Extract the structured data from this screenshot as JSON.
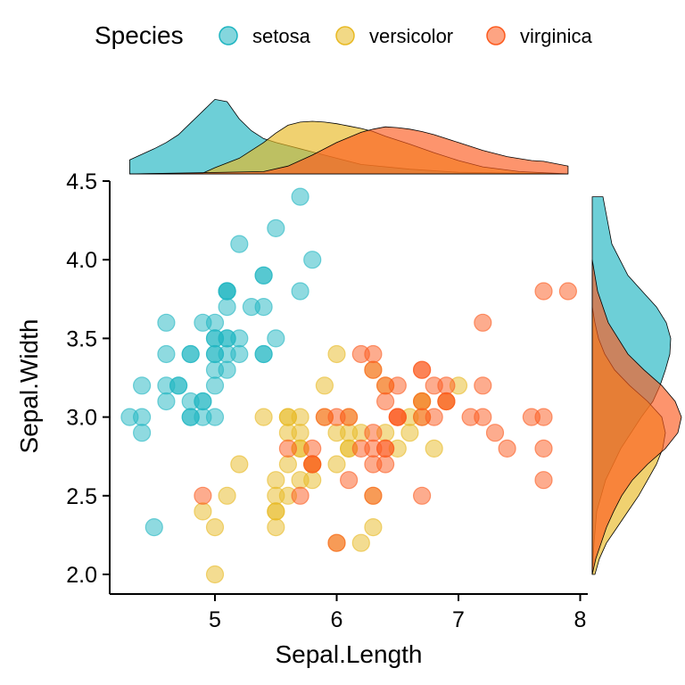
{
  "chart_data": {
    "type": "scatter",
    "title": "",
    "xlabel": "Sepal.Length",
    "ylabel": "Sepal.Width",
    "xlim": [
      4.2,
      8.05
    ],
    "ylim": [
      1.9,
      4.5
    ],
    "xticks": [
      5,
      6,
      7,
      8
    ],
    "yticks": [
      2.0,
      2.5,
      3.0,
      3.5,
      4.0,
      4.5
    ],
    "ytick_labels": [
      "2.0",
      "2.5",
      "3.0",
      "3.5",
      "4.0",
      "4.5"
    ],
    "xtick_labels": [
      "5",
      "6",
      "7",
      "8"
    ],
    "grid": false,
    "legend": {
      "title": "Species",
      "position": "top",
      "entries": [
        "setosa",
        "versicolor",
        "virginica"
      ]
    },
    "colors": {
      "setosa": "#1FB5C1",
      "versicolor": "#E8B923",
      "virginica": "#FC5A1E",
      "outline": "#000000"
    },
    "series": [
      {
        "name": "setosa",
        "points": [
          [
            5.1,
            3.5
          ],
          [
            4.9,
            3.0
          ],
          [
            4.7,
            3.2
          ],
          [
            4.6,
            3.1
          ],
          [
            5.0,
            3.6
          ],
          [
            5.4,
            3.9
          ],
          [
            4.6,
            3.4
          ],
          [
            5.0,
            3.4
          ],
          [
            4.4,
            2.9
          ],
          [
            4.9,
            3.1
          ],
          [
            5.4,
            3.7
          ],
          [
            4.8,
            3.4
          ],
          [
            4.8,
            3.0
          ],
          [
            4.3,
            3.0
          ],
          [
            5.8,
            4.0
          ],
          [
            5.7,
            4.4
          ],
          [
            5.4,
            3.9
          ],
          [
            5.1,
            3.5
          ],
          [
            5.7,
            3.8
          ],
          [
            5.1,
            3.8
          ],
          [
            5.4,
            3.4
          ],
          [
            5.1,
            3.7
          ],
          [
            4.6,
            3.6
          ],
          [
            5.1,
            3.3
          ],
          [
            4.8,
            3.4
          ],
          [
            5.0,
            3.0
          ],
          [
            5.0,
            3.4
          ],
          [
            5.2,
            3.5
          ],
          [
            5.2,
            3.4
          ],
          [
            4.7,
            3.2
          ],
          [
            4.8,
            3.1
          ],
          [
            5.4,
            3.4
          ],
          [
            5.2,
            4.1
          ],
          [
            5.5,
            4.2
          ],
          [
            4.9,
            3.1
          ],
          [
            5.0,
            3.2
          ],
          [
            5.5,
            3.5
          ],
          [
            4.9,
            3.6
          ],
          [
            4.4,
            3.0
          ],
          [
            5.1,
            3.4
          ],
          [
            5.0,
            3.5
          ],
          [
            4.5,
            2.3
          ],
          [
            4.4,
            3.2
          ],
          [
            5.0,
            3.5
          ],
          [
            5.1,
            3.8
          ],
          [
            4.8,
            3.0
          ],
          [
            5.1,
            3.8
          ],
          [
            4.6,
            3.2
          ],
          [
            5.3,
            3.7
          ],
          [
            5.0,
            3.3
          ]
        ]
      },
      {
        "name": "versicolor",
        "points": [
          [
            7.0,
            3.2
          ],
          [
            6.4,
            3.2
          ],
          [
            6.9,
            3.1
          ],
          [
            5.5,
            2.3
          ],
          [
            6.5,
            2.8
          ],
          [
            5.7,
            2.8
          ],
          [
            6.3,
            3.3
          ],
          [
            4.9,
            2.4
          ],
          [
            6.6,
            2.9
          ],
          [
            5.2,
            2.7
          ],
          [
            5.0,
            2.0
          ],
          [
            5.9,
            3.0
          ],
          [
            6.0,
            2.2
          ],
          [
            6.1,
            2.9
          ],
          [
            5.6,
            2.9
          ],
          [
            6.7,
            3.1
          ],
          [
            5.6,
            3.0
          ],
          [
            5.8,
            2.7
          ],
          [
            6.2,
            2.2
          ],
          [
            5.6,
            2.5
          ],
          [
            5.9,
            3.2
          ],
          [
            6.1,
            2.8
          ],
          [
            6.3,
            2.5
          ],
          [
            6.1,
            2.8
          ],
          [
            6.4,
            2.9
          ],
          [
            6.6,
            3.0
          ],
          [
            6.8,
            2.8
          ],
          [
            6.7,
            3.0
          ],
          [
            6.0,
            2.9
          ],
          [
            5.7,
            2.6
          ],
          [
            5.5,
            2.4
          ],
          [
            5.5,
            2.4
          ],
          [
            5.8,
            2.7
          ],
          [
            6.0,
            2.7
          ],
          [
            5.4,
            3.0
          ],
          [
            6.0,
            3.4
          ],
          [
            6.7,
            3.1
          ],
          [
            6.3,
            2.3
          ],
          [
            5.6,
            3.0
          ],
          [
            5.5,
            2.5
          ],
          [
            5.5,
            2.6
          ],
          [
            6.1,
            3.0
          ],
          [
            5.8,
            2.6
          ],
          [
            5.0,
            2.3
          ],
          [
            5.6,
            2.7
          ],
          [
            5.7,
            3.0
          ],
          [
            5.7,
            2.9
          ],
          [
            6.2,
            2.9
          ],
          [
            5.1,
            2.5
          ],
          [
            5.7,
            2.8
          ]
        ]
      },
      {
        "name": "virginica",
        "points": [
          [
            6.3,
            3.3
          ],
          [
            5.8,
            2.7
          ],
          [
            7.1,
            3.0
          ],
          [
            6.3,
            2.9
          ],
          [
            6.5,
            3.0
          ],
          [
            7.6,
            3.0
          ],
          [
            4.9,
            2.5
          ],
          [
            7.3,
            2.9
          ],
          [
            6.7,
            2.5
          ],
          [
            7.2,
            3.6
          ],
          [
            6.5,
            3.2
          ],
          [
            6.4,
            2.7
          ],
          [
            6.8,
            3.0
          ],
          [
            5.7,
            2.5
          ],
          [
            5.8,
            2.8
          ],
          [
            6.4,
            3.2
          ],
          [
            6.5,
            3.0
          ],
          [
            7.7,
            3.8
          ],
          [
            7.7,
            2.6
          ],
          [
            6.0,
            2.2
          ],
          [
            6.9,
            3.2
          ],
          [
            5.6,
            2.8
          ],
          [
            7.7,
            2.8
          ],
          [
            6.3,
            2.7
          ],
          [
            6.7,
            3.3
          ],
          [
            7.2,
            3.2
          ],
          [
            6.2,
            2.8
          ],
          [
            6.1,
            3.0
          ],
          [
            6.4,
            2.8
          ],
          [
            7.2,
            3.0
          ],
          [
            7.4,
            2.8
          ],
          [
            7.9,
            3.8
          ],
          [
            6.4,
            2.8
          ],
          [
            6.3,
            2.8
          ],
          [
            6.1,
            2.6
          ],
          [
            7.7,
            3.0
          ],
          [
            6.3,
            3.4
          ],
          [
            6.4,
            3.1
          ],
          [
            6.0,
            3.0
          ],
          [
            6.9,
            3.1
          ],
          [
            6.7,
            3.1
          ],
          [
            6.9,
            3.1
          ],
          [
            5.8,
            2.7
          ],
          [
            6.8,
            3.2
          ],
          [
            6.7,
            3.3
          ],
          [
            6.7,
            3.0
          ],
          [
            6.3,
            2.5
          ],
          [
            6.5,
            3.0
          ],
          [
            6.2,
            3.4
          ],
          [
            5.9,
            3.0
          ]
        ]
      }
    ],
    "marginal_x_density": {
      "type": "area",
      "x_range": [
        4.3,
        7.9
      ],
      "series": [
        {
          "name": "setosa",
          "x": [
            4.3,
            4.5,
            4.6,
            4.7,
            4.8,
            4.9,
            5.0,
            5.1,
            5.2,
            5.3,
            5.4,
            5.5,
            5.6,
            5.7,
            5.8,
            6.0,
            6.2,
            6.6,
            7.0,
            7.9
          ],
          "density": [
            0.18,
            0.32,
            0.4,
            0.5,
            0.65,
            0.8,
            0.95,
            0.92,
            0.7,
            0.55,
            0.45,
            0.4,
            0.36,
            0.32,
            0.28,
            0.2,
            0.12,
            0.06,
            0.02,
            0.0
          ]
        },
        {
          "name": "versicolor",
          "x": [
            4.3,
            4.9,
            5.0,
            5.2,
            5.4,
            5.5,
            5.6,
            5.7,
            5.8,
            5.9,
            6.0,
            6.1,
            6.2,
            6.3,
            6.4,
            6.6,
            6.8,
            7.0,
            7.2,
            7.5,
            7.9
          ],
          "density": [
            0.0,
            0.01,
            0.08,
            0.2,
            0.4,
            0.52,
            0.62,
            0.66,
            0.67,
            0.66,
            0.64,
            0.61,
            0.58,
            0.54,
            0.48,
            0.38,
            0.27,
            0.17,
            0.09,
            0.03,
            0.0
          ]
        },
        {
          "name": "virginica",
          "x": [
            4.3,
            5.4,
            5.6,
            5.8,
            6.0,
            6.2,
            6.3,
            6.4,
            6.5,
            6.6,
            6.7,
            6.8,
            7.0,
            7.2,
            7.4,
            7.6,
            7.7,
            7.9
          ],
          "density": [
            0.0,
            0.03,
            0.1,
            0.24,
            0.4,
            0.53,
            0.57,
            0.6,
            0.59,
            0.57,
            0.54,
            0.5,
            0.4,
            0.3,
            0.22,
            0.17,
            0.16,
            0.1
          ]
        }
      ]
    },
    "marginal_y_density": {
      "type": "area",
      "y_range": [
        2.0,
        4.4
      ],
      "series": [
        {
          "name": "setosa",
          "y": [
            2.0,
            2.2,
            2.4,
            2.6,
            2.8,
            3.0,
            3.1,
            3.2,
            3.3,
            3.4,
            3.5,
            3.6,
            3.7,
            3.8,
            3.9,
            4.1,
            4.4
          ],
          "density": [
            0.0,
            0.02,
            0.05,
            0.15,
            0.32,
            0.55,
            0.68,
            0.76,
            0.82,
            0.87,
            0.88,
            0.83,
            0.72,
            0.56,
            0.4,
            0.22,
            0.12
          ]
        },
        {
          "name": "versicolor",
          "y": [
            2.0,
            2.1,
            2.2,
            2.3,
            2.4,
            2.5,
            2.6,
            2.7,
            2.8,
            2.9,
            3.0,
            3.1,
            3.2,
            3.3,
            3.4,
            3.5,
            3.6,
            3.7
          ],
          "density": [
            0.03,
            0.08,
            0.16,
            0.28,
            0.4,
            0.52,
            0.62,
            0.72,
            0.79,
            0.82,
            0.78,
            0.62,
            0.42,
            0.25,
            0.14,
            0.07,
            0.03,
            0.0
          ]
        },
        {
          "name": "virginica",
          "y": [
            2.0,
            2.1,
            2.2,
            2.3,
            2.4,
            2.5,
            2.6,
            2.7,
            2.8,
            2.9,
            3.0,
            3.1,
            3.2,
            3.3,
            3.4,
            3.6,
            3.8,
            4.0
          ],
          "density": [
            0.0,
            0.04,
            0.1,
            0.16,
            0.24,
            0.33,
            0.45,
            0.62,
            0.82,
            0.96,
            1.0,
            0.93,
            0.78,
            0.58,
            0.4,
            0.18,
            0.06,
            0.0
          ]
        }
      ]
    }
  }
}
